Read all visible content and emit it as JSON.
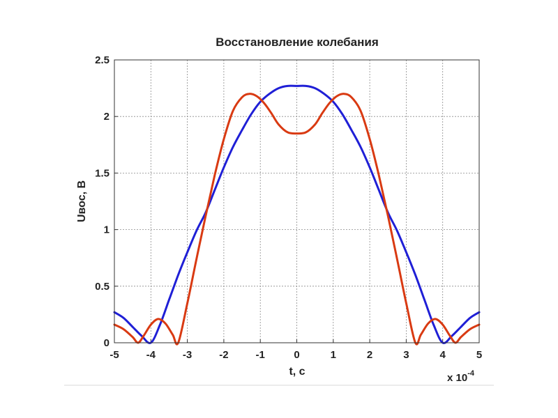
{
  "chart_data": {
    "type": "line",
    "title": "Восстановление колебания",
    "xlabel": "t, c",
    "ylabel": "Uвос, В",
    "x_multiplier": "x 10",
    "x_multiplier_exp": "-4",
    "xlim": [
      -5,
      5
    ],
    "ylim": [
      0,
      2.5
    ],
    "xticks": [
      "-5",
      "-4",
      "-3",
      "-2",
      "-1",
      "0",
      "1",
      "2",
      "3",
      "4",
      "5"
    ],
    "yticks": [
      "0",
      "0.5",
      "1",
      "1.5",
      "2",
      "2.5"
    ],
    "grid": true,
    "series": [
      {
        "color": "#1f1fd6",
        "x": [
          -5,
          -4.75,
          -4.5,
          -4.25,
          -4.0,
          -3.75,
          -3.5,
          -3.25,
          -3.0,
          -2.75,
          -2.5,
          -2.25,
          -2.0,
          -1.75,
          -1.5,
          -1.25,
          -1.0,
          -0.75,
          -0.5,
          -0.25,
          0,
          0.25,
          0.5,
          0.75,
          1.0,
          1.25,
          1.5,
          1.75,
          2.0,
          2.25,
          2.5,
          2.75,
          3.0,
          3.25,
          3.5,
          3.75,
          4.0,
          4.25,
          4.5,
          4.75,
          5
        ],
        "y": [
          0.27,
          0.22,
          0.14,
          0.06,
          0.0,
          0.16,
          0.38,
          0.6,
          0.8,
          0.99,
          1.15,
          1.35,
          1.55,
          1.73,
          1.88,
          2.02,
          2.13,
          2.2,
          2.25,
          2.27,
          2.27,
          2.27,
          2.25,
          2.2,
          2.13,
          2.02,
          1.88,
          1.73,
          1.55,
          1.35,
          1.15,
          0.99,
          0.8,
          0.6,
          0.38,
          0.16,
          0.0,
          0.06,
          0.14,
          0.22,
          0.27
        ]
      },
      {
        "color": "#d93a12",
        "x": [
          -5,
          -4.75,
          -4.5,
          -4.35,
          -4.2,
          -4.0,
          -3.8,
          -3.6,
          -3.4,
          -3.25,
          -3.0,
          -2.75,
          -2.5,
          -2.25,
          -2.0,
          -1.75,
          -1.5,
          -1.3,
          -1.1,
          -0.9,
          -0.7,
          -0.5,
          -0.25,
          0,
          0.25,
          0.5,
          0.7,
          0.9,
          1.1,
          1.3,
          1.5,
          1.75,
          2.0,
          2.25,
          2.5,
          2.75,
          3.0,
          3.25,
          3.4,
          3.6,
          3.8,
          4.0,
          4.2,
          4.35,
          4.5,
          4.75,
          5
        ],
        "y": [
          0.16,
          0.12,
          0.05,
          0.0,
          0.06,
          0.16,
          0.21,
          0.17,
          0.07,
          0.0,
          0.35,
          0.74,
          1.12,
          1.48,
          1.8,
          2.05,
          2.17,
          2.2,
          2.18,
          2.12,
          2.03,
          1.93,
          1.86,
          1.85,
          1.86,
          1.93,
          2.03,
          2.12,
          2.18,
          2.2,
          2.17,
          2.05,
          1.8,
          1.48,
          1.12,
          0.74,
          0.35,
          0.0,
          0.07,
          0.17,
          0.21,
          0.16,
          0.06,
          0.0,
          0.05,
          0.12,
          0.16
        ]
      }
    ]
  }
}
